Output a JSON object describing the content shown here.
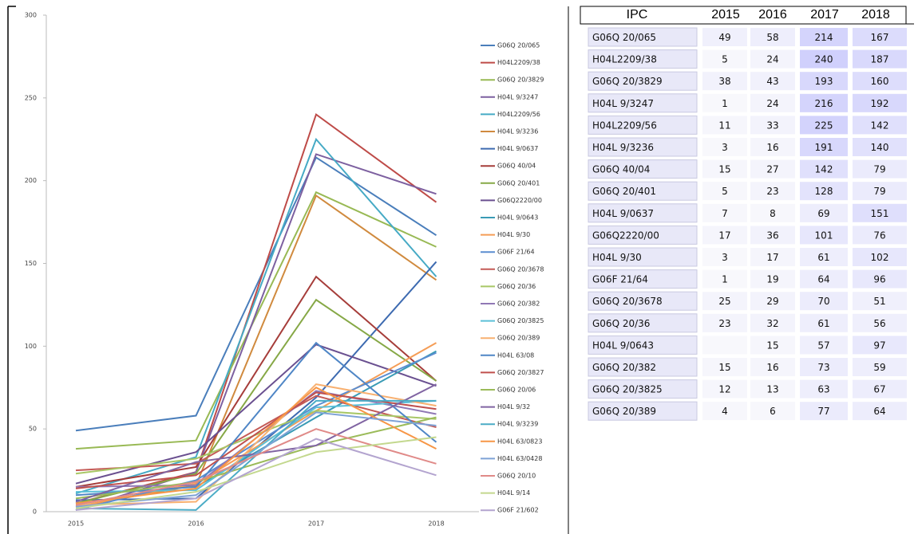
{
  "chart_data": {
    "type": "line",
    "categories": [
      "2015",
      "2016",
      "2017",
      "2018"
    ],
    "ylim": [
      0,
      300
    ],
    "yticks": [
      0,
      50,
      100,
      150,
      200,
      250,
      300
    ],
    "series": [
      {
        "name": "G06Q 20/065",
        "color": "#4a7ebb",
        "values": [
          49,
          58,
          214,
          167
        ]
      },
      {
        "name": "H04L2209/38",
        "color": "#be4b48",
        "values": [
          5,
          24,
          240,
          187
        ]
      },
      {
        "name": "G06Q 20/3829",
        "color": "#98b954",
        "values": [
          38,
          43,
          193,
          160
        ]
      },
      {
        "name": "H04L 9/3247",
        "color": "#7d60a0",
        "values": [
          1,
          24,
          216,
          192
        ]
      },
      {
        "name": "H04L2209/56",
        "color": "#46aac5",
        "values": [
          11,
          33,
          225,
          142
        ]
      },
      {
        "name": "H04L 9/3236",
        "color": "#d08a3e",
        "values": [
          3,
          16,
          191,
          140
        ]
      },
      {
        "name": "H04L 9/0637",
        "color": "#3d6ab0",
        "values": [
          7,
          8,
          69,
          151
        ]
      },
      {
        "name": "G06Q 40/04",
        "color": "#a63d3a",
        "values": [
          15,
          27,
          142,
          79
        ]
      },
      {
        "name": "G06Q 20/401",
        "color": "#86a846",
        "values": [
          5,
          23,
          128,
          79
        ]
      },
      {
        "name": "G06Q2220/00",
        "color": "#6a5090",
        "values": [
          17,
          36,
          101,
          76
        ]
      },
      {
        "name": "H04L 9/0643",
        "color": "#3a9bb5",
        "values": [
          null,
          15,
          57,
          97
        ]
      },
      {
        "name": "H04L 9/30",
        "color": "#f59d56",
        "values": [
          3,
          17,
          61,
          102
        ]
      },
      {
        "name": "G06F 21/64",
        "color": "#5b8dd0",
        "values": [
          1,
          19,
          64,
          96
        ]
      },
      {
        "name": "G06Q 20/3678",
        "color": "#c45a56",
        "values": [
          25,
          29,
          70,
          51
        ]
      },
      {
        "name": "G06Q 20/36",
        "color": "#a8c766",
        "values": [
          23,
          32,
          61,
          56
        ]
      },
      {
        "name": "G06Q 20/382",
        "color": "#9078b5",
        "values": [
          15,
          16,
          73,
          59
        ]
      },
      {
        "name": "G06Q 20/3825",
        "color": "#5cc0d8",
        "values": [
          12,
          13,
          63,
          67
        ]
      },
      {
        "name": "G06Q 20/389",
        "color": "#f8b070",
        "values": [
          4,
          6,
          77,
          64
        ]
      },
      {
        "name": "H04L 63/08",
        "color": "#4f86c6",
        "values": [
          10,
          15,
          102,
          42
        ]
      },
      {
        "name": "G06Q 20/3827",
        "color": "#c0504d",
        "values": [
          14,
          22,
          72,
          62
        ]
      },
      {
        "name": "G06Q 20/06",
        "color": "#9bbb59",
        "values": [
          8,
          18,
          40,
          57
        ]
      },
      {
        "name": "H04L 9/32",
        "color": "#8064a2",
        "values": [
          6,
          30,
          40,
          77
        ]
      },
      {
        "name": "H04L 9/3239",
        "color": "#4bacc6",
        "values": [
          2,
          1,
          67,
          67
        ]
      },
      {
        "name": "H04L 63/0823",
        "color": "#f79646",
        "values": [
          5,
          14,
          75,
          38
        ]
      },
      {
        "name": "H04L 63/0428",
        "color": "#7ea2d6",
        "values": [
          3,
          10,
          60,
          52
        ]
      },
      {
        "name": "G06Q 20/10",
        "color": "#e08a88",
        "values": [
          4,
          18,
          50,
          29
        ]
      },
      {
        "name": "H04L 9/14",
        "color": "#c3d88e",
        "values": [
          2,
          12,
          36,
          45
        ]
      },
      {
        "name": "G06F 21/602",
        "color": "#b3a4cf",
        "values": [
          1,
          8,
          44,
          22
        ]
      }
    ]
  },
  "table": {
    "header": [
      "IPC",
      "2015",
      "2016",
      "2017",
      "2018"
    ],
    "rows": [
      [
        "G06Q 20/065",
        49,
        58,
        214,
        167
      ],
      [
        "H04L2209/38",
        5,
        24,
        240,
        187
      ],
      [
        "G06Q 20/3829",
        38,
        43,
        193,
        160
      ],
      [
        "H04L 9/3247",
        1,
        24,
        216,
        192
      ],
      [
        "H04L2209/56",
        11,
        33,
        225,
        142
      ],
      [
        "H04L 9/3236",
        3,
        16,
        191,
        140
      ],
      [
        "G06Q 40/04",
        15,
        27,
        142,
        79
      ],
      [
        "G06Q 20/401",
        5,
        23,
        128,
        79
      ],
      [
        "H04L 9/0637",
        7,
        8,
        69,
        151
      ],
      [
        "G06Q2220/00",
        17,
        36,
        101,
        76
      ],
      [
        "H04L 9/30",
        3,
        17,
        61,
        102
      ],
      [
        "G06F 21/64",
        1,
        19,
        64,
        96
      ],
      [
        "G06Q 20/3678",
        25,
        29,
        70,
        51
      ],
      [
        "G06Q 20/36",
        23,
        32,
        61,
        56
      ],
      [
        "H04L 9/0643",
        null,
        15,
        57,
        97
      ],
      [
        "G06Q 20/382",
        15,
        16,
        73,
        59
      ],
      [
        "G06Q 20/3825",
        12,
        13,
        63,
        67
      ],
      [
        "G06Q 20/389",
        4,
        6,
        77,
        64
      ]
    ]
  }
}
